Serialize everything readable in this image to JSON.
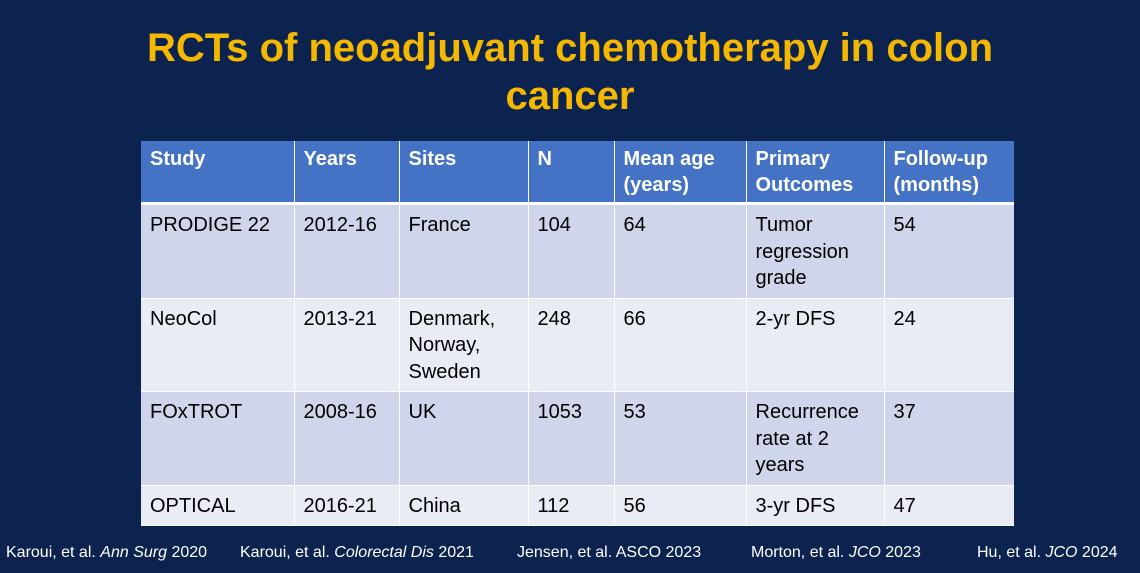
{
  "title": {
    "line1": "RCTs of neoadjuvant chemotherapy in colon",
    "line2": "cancer"
  },
  "table": {
    "headers": [
      {
        "line1": "Study",
        "line2": ""
      },
      {
        "line1": "Years",
        "line2": ""
      },
      {
        "line1": "Sites",
        "line2": ""
      },
      {
        "line1": "N",
        "line2": ""
      },
      {
        "line1": "Mean age",
        "line2": "(years)"
      },
      {
        "line1": "Primary",
        "line2": "Outcomes"
      },
      {
        "line1": "Follow-up",
        "line2": "(months)"
      }
    ],
    "rows": [
      {
        "study": "PRODIGE 22",
        "years": "2012-16",
        "sites": [
          "France"
        ],
        "n": "104",
        "mean_age": "64",
        "outcomes": [
          "Tumor",
          "regression",
          "grade"
        ],
        "followup": "54"
      },
      {
        "study": "NeoCol",
        "years": "2013-21",
        "sites": [
          "Denmark,",
          "Norway,",
          "Sweden"
        ],
        "n": "248",
        "mean_age": "66",
        "outcomes": [
          "2-yr DFS"
        ],
        "followup": "24"
      },
      {
        "study": "FOxTROT",
        "years": "2008-16",
        "sites": [
          "UK"
        ],
        "n": "1053",
        "mean_age": "53",
        "outcomes": [
          "Recurrence",
          "rate at 2",
          "years"
        ],
        "followup": "37"
      },
      {
        "study": "OPTICAL",
        "years": "2016-21",
        "sites": [
          "China"
        ],
        "n": "112",
        "mean_age": "56",
        "outcomes": [
          "3-yr DFS"
        ],
        "followup": "47"
      }
    ]
  },
  "references": [
    {
      "authors": "Karoui, et al. ",
      "journal": "Ann Surg",
      "year": " 2020"
    },
    {
      "authors": "Karoui, et al. ",
      "journal": "Colorectal Dis",
      "year": " 2021"
    },
    {
      "authors": "Jensen, et al. ASCO 2023",
      "journal": "",
      "year": ""
    },
    {
      "authors": "Morton, et al. ",
      "journal": "JCO",
      "year": " 2023"
    },
    {
      "authors": "Hu, et al. ",
      "journal": "JCO",
      "year": " 2024"
    }
  ],
  "colors": {
    "background": "#0c2350",
    "title": "#f5b800",
    "header": "#4472c4",
    "row_odd": "#cfd5ea",
    "row_even": "#e9ebf5"
  }
}
